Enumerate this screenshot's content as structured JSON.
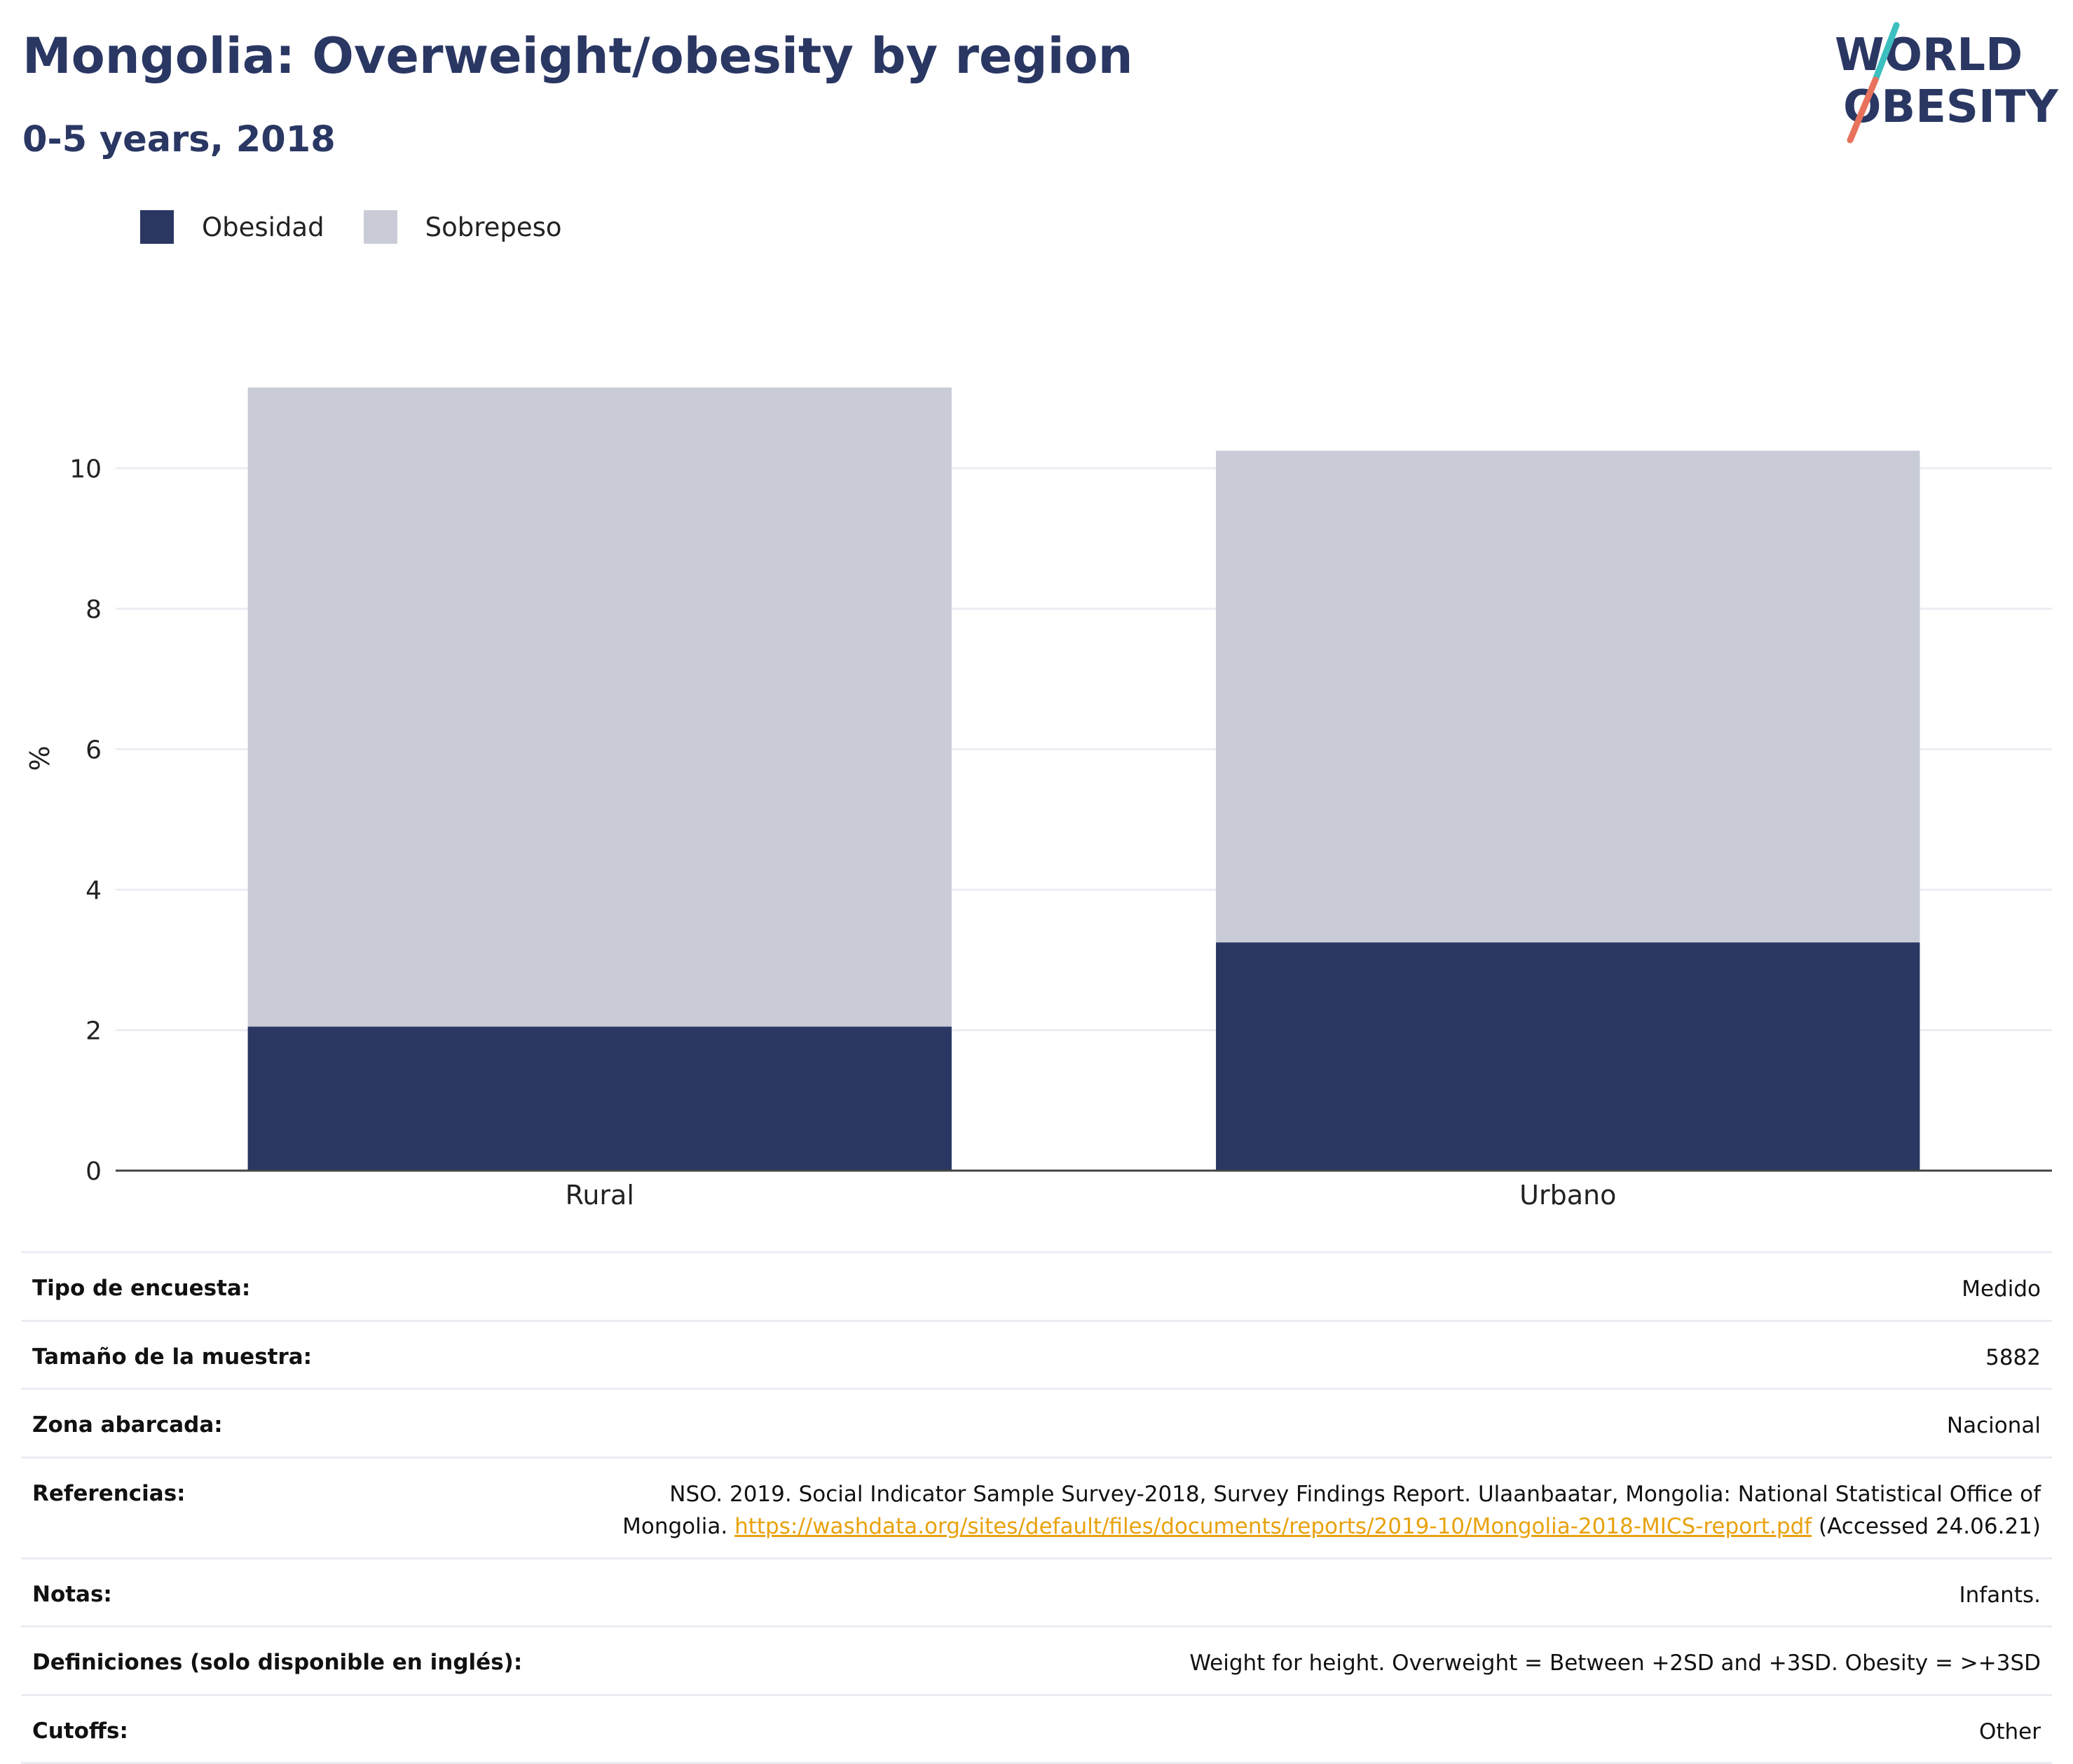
{
  "header": {
    "title": "Mongolia: Overweight/obesity by region",
    "subtitle": "0-5 years, 2018"
  },
  "logo": {
    "line1": "WORLD",
    "line2": "OBESITY",
    "colors": {
      "text": "#2a3763",
      "slash_top": "#3dbfbf",
      "slash_bottom": "#e8725c"
    }
  },
  "chart_data": {
    "type": "bar",
    "stacked": true,
    "categories": [
      "Rural",
      "Urbano"
    ],
    "series": [
      {
        "name": "Obesidad",
        "values": [
          2.05,
          3.25
        ],
        "color": "#2a3763"
      },
      {
        "name": "Sobrepeso",
        "values": [
          9.1,
          7.0
        ],
        "color": "#c9ccd7"
      }
    ],
    "title": "Mongolia: Overweight/obesity by region",
    "subtitle": "0-5 years, 2018",
    "xlabel": "",
    "ylabel": "%",
    "ylim": [
      0,
      11.7
    ],
    "yticks": [
      0,
      2,
      4,
      6,
      8,
      10
    ],
    "grid": true,
    "legend_position": "top-left"
  },
  "info": {
    "rows": [
      {
        "label": "Tipo de encuesta:",
        "value": "Medido"
      },
      {
        "label": "Tamaño de la muestra:",
        "value": "5882"
      },
      {
        "label": "Zona abarcada:",
        "value": "Nacional"
      },
      {
        "label": "Referencias:",
        "value_before": "NSO. 2019. Social Indicator Sample Survey-2018, Survey Findings Report. Ulaanbaatar, Mongolia: National Statistical Office of Mongolia.",
        "link": "https://washdata.org/sites/default/files/documents/reports/2019-10/Mongolia-2018-MICS-report.pdf",
        "value_after": "(Accessed 24.06.21)"
      },
      {
        "label": "Notas:",
        "value": "Infants."
      },
      {
        "label": "Definiciones (solo disponible en inglés):",
        "value": "Weight for height. Overweight = Between +2SD and +3SD. Obesity = >+3SD"
      },
      {
        "label": "Cutoffs:",
        "value": "Other"
      }
    ]
  }
}
